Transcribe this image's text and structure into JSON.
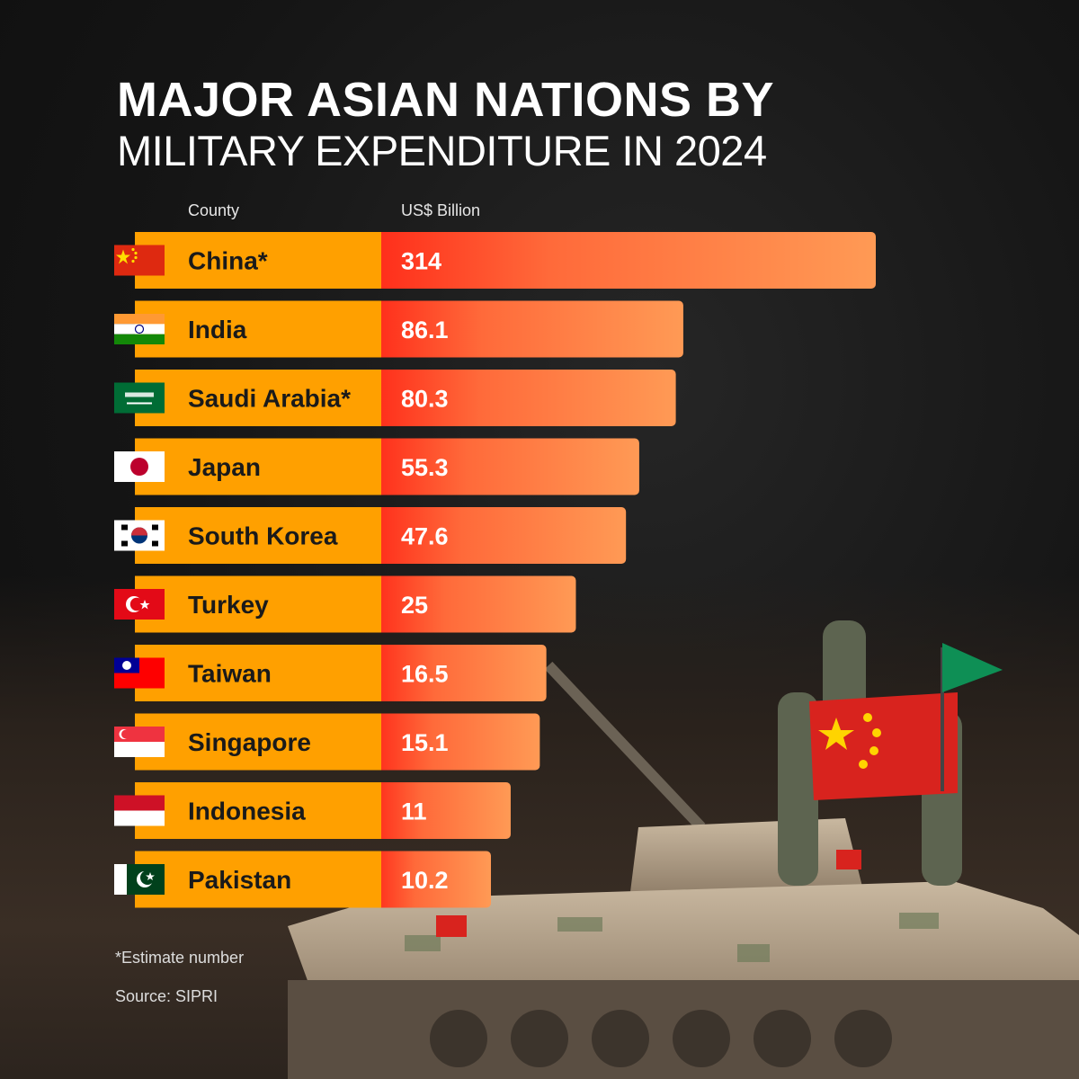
{
  "title": {
    "line1": "MAJOR ASIAN NATIONS BY",
    "line2": "MILITARY EXPENDITURE IN 2024"
  },
  "chart_data": {
    "type": "bar",
    "orientation": "horizontal",
    "column_headers": {
      "country": "County",
      "value": "US$ Billion"
    },
    "categories": [
      "China*",
      "India",
      "Saudi Arabia*",
      "Japan",
      "South Korea",
      "Turkey",
      "Taiwan",
      "Singapore",
      "Indonesia",
      "Pakistan"
    ],
    "values": [
      314,
      86.1,
      80.3,
      55.3,
      47.6,
      25,
      16.5,
      15.1,
      11,
      10.2
    ],
    "value_labels": [
      "314",
      "86.1",
      "80.3",
      "55.3",
      "47.6",
      "25",
      "16.5",
      "15.1",
      "11",
      "10.2"
    ],
    "flags": [
      "china-flag",
      "india-flag",
      "saudi-arabia-flag",
      "japan-flag",
      "south-korea-flag",
      "turkey-flag",
      "taiwan-flag",
      "singapore-flag",
      "indonesia-flag",
      "pakistan-flag"
    ],
    "xlim": [
      0,
      314
    ],
    "colors": {
      "label_bar": "#ffa000",
      "value_bar_start": "#ff2d1a",
      "value_bar_end": "#ff9a55"
    }
  },
  "footnote": "*Estimate number",
  "source": "Source: SIPRI"
}
